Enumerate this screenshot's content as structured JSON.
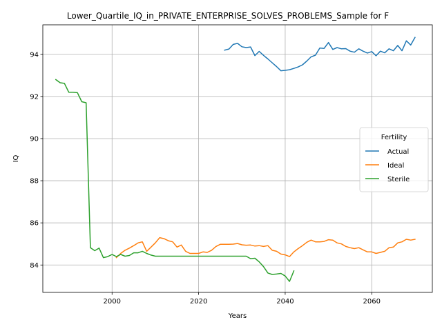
{
  "chart_data": {
    "type": "line",
    "title": "Lower_Quartile_IQ_in_PRIVATE_ENTERPRISE_SOLVES_PROBLEMS_Sample for F",
    "xlabel": "Years",
    "ylabel": "IQ",
    "xlim": [
      1984,
      2074
    ],
    "ylim": [
      82.7,
      95.4
    ],
    "xticks": [
      2000,
      2020,
      2040,
      2060
    ],
    "yticks": [
      84,
      86,
      88,
      90,
      92,
      94
    ],
    "grid": true,
    "legend": {
      "title": "Fertility",
      "placement": "center-right"
    },
    "series": [
      {
        "name": "Actual",
        "color": "#1f77b4",
        "x": [
          2026,
          2027,
          2028,
          2029,
          2030,
          2031,
          2032,
          2033,
          2034,
          2035,
          2036,
          2037,
          2038,
          2039,
          2040,
          2041,
          2042,
          2043,
          2044,
          2045,
          2046,
          2047,
          2048,
          2049,
          2050,
          2051,
          2052,
          2053,
          2054,
          2055,
          2056,
          2057,
          2058,
          2059,
          2060,
          2061,
          2062,
          2063,
          2064,
          2065,
          2066,
          2067,
          2068,
          2069,
          2070
        ],
        "y": [
          94.2,
          94.25,
          94.47,
          94.52,
          94.36,
          94.32,
          94.35,
          93.94,
          94.14,
          93.95,
          93.78,
          93.6,
          93.42,
          93.22,
          93.24,
          93.27,
          93.33,
          93.4,
          93.5,
          93.68,
          93.88,
          93.96,
          94.3,
          94.28,
          94.56,
          94.23,
          94.32,
          94.26,
          94.27,
          94.15,
          94.1,
          94.26,
          94.15,
          94.06,
          94.13,
          93.93,
          94.15,
          94.07,
          94.26,
          94.17,
          94.42,
          94.17,
          94.64,
          94.44,
          94.8
        ]
      },
      {
        "name": "Ideal",
        "color": "#ff7f0e",
        "x": [
          2001,
          2002,
          2003,
          2004,
          2005,
          2006,
          2007,
          2008,
          2009,
          2010,
          2011,
          2012,
          2013,
          2014,
          2015,
          2016,
          2017,
          2018,
          2019,
          2020,
          2021,
          2022,
          2023,
          2024,
          2025,
          2026,
          2027,
          2028,
          2029,
          2030,
          2031,
          2032,
          2033,
          2034,
          2035,
          2036,
          2037,
          2038,
          2039,
          2040,
          2041,
          2042,
          2043,
          2044,
          2045,
          2046,
          2047,
          2048,
          2049,
          2050,
          2051,
          2052,
          2053,
          2054,
          2055,
          2056,
          2057,
          2058,
          2059,
          2060,
          2061,
          2062,
          2063,
          2064,
          2065,
          2066,
          2067,
          2068,
          2069,
          2070
        ],
        "y": [
          84.35,
          84.55,
          84.7,
          84.8,
          84.92,
          85.05,
          85.1,
          84.65,
          84.85,
          85.05,
          85.3,
          85.25,
          85.15,
          85.1,
          84.85,
          84.95,
          84.65,
          84.55,
          84.55,
          84.55,
          84.62,
          84.6,
          84.7,
          84.88,
          84.98,
          84.98,
          84.98,
          84.99,
          85.02,
          84.96,
          84.94,
          84.95,
          84.9,
          84.92,
          84.88,
          84.92,
          84.7,
          84.65,
          84.52,
          84.48,
          84.4,
          84.62,
          84.78,
          84.92,
          85.08,
          85.18,
          85.1,
          85.1,
          85.12,
          85.2,
          85.18,
          85.05,
          85.0,
          84.88,
          84.82,
          84.78,
          84.82,
          84.72,
          84.62,
          84.62,
          84.55,
          84.6,
          84.65,
          84.82,
          84.85,
          85.05,
          85.1,
          85.22,
          85.18,
          85.22
        ]
      },
      {
        "name": "Sterile",
        "color": "#2ca02c",
        "x": [
          1987,
          1988,
          1989,
          1990,
          1991,
          1992,
          1993,
          1994,
          1995,
          1996,
          1997,
          1998,
          1999,
          2000,
          2001,
          2002,
          2003,
          2004,
          2005,
          2006,
          2007,
          2008,
          2009,
          2010,
          2011,
          2012,
          2013,
          2014,
          2015,
          2016,
          2017,
          2018,
          2019,
          2020,
          2021,
          2022,
          2023,
          2024,
          2025,
          2026,
          2027,
          2028,
          2029,
          2030,
          2031,
          2032,
          2033,
          2034,
          2035,
          2036,
          2037,
          2038,
          2039,
          2040,
          2041,
          2042
        ],
        "y": [
          92.8,
          92.65,
          92.62,
          92.2,
          92.2,
          92.18,
          91.75,
          91.7,
          84.82,
          84.68,
          84.8,
          84.35,
          84.4,
          84.5,
          84.4,
          84.5,
          84.42,
          84.45,
          84.58,
          84.58,
          84.65,
          84.55,
          84.47,
          84.42,
          84.42,
          84.42,
          84.42,
          84.42,
          84.42,
          84.42,
          84.42,
          84.42,
          84.42,
          84.42,
          84.42,
          84.42,
          84.42,
          84.42,
          84.42,
          84.42,
          84.42,
          84.42,
          84.42,
          84.42,
          84.42,
          84.3,
          84.32,
          84.15,
          83.92,
          83.62,
          83.55,
          83.57,
          83.6,
          83.48,
          83.22,
          83.72
        ]
      }
    ]
  }
}
